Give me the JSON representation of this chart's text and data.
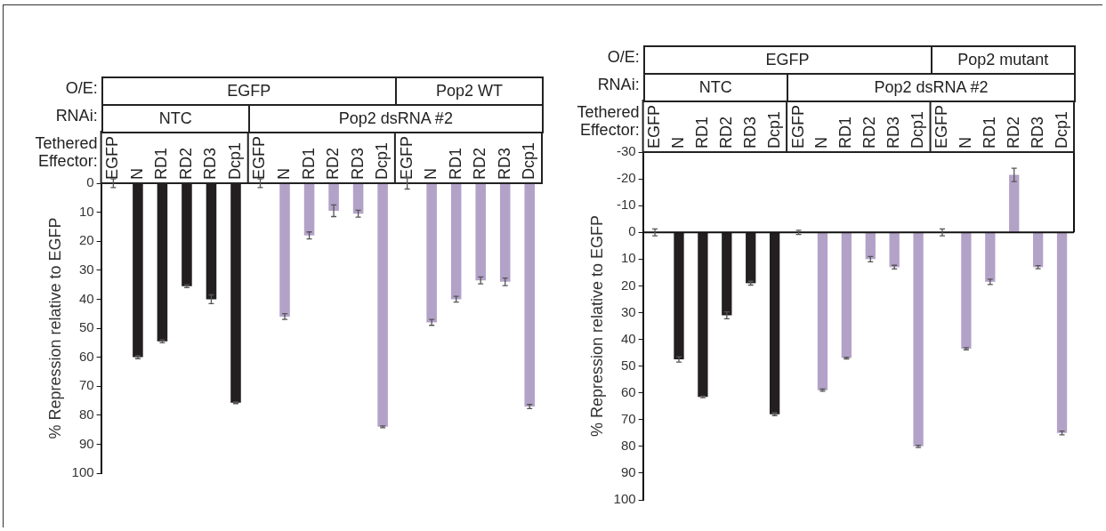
{
  "chart_data": [
    {
      "type": "bar",
      "ylabel": "% Repression relative to EGFP",
      "annotations": [
        "O/E:",
        "EGFP",
        "Pop2 WT",
        "RNAi:",
        "NTC",
        "Pop2 dsRNA #2",
        "Tethered Effector:"
      ],
      "categories": [
        "EGFP",
        "N",
        "RD1",
        "RD2",
        "RD3",
        "Dcp1",
        "EGFP",
        "N",
        "RD1",
        "RD2",
        "RD3",
        "Dcp1",
        "EGFP",
        "N",
        "RD1",
        "RD2",
        "RD3",
        "Dcp1"
      ],
      "values": [
        0,
        60,
        54.5,
        35.5,
        40,
        75.7,
        0,
        46,
        18,
        9.5,
        10.5,
        84,
        0,
        48,
        40,
        33.5,
        34,
        77
      ],
      "errors": [
        1.5,
        0.5,
        0.5,
        0.5,
        1.5,
        0.3,
        1.5,
        1,
        1.2,
        2,
        1.2,
        0.3,
        2,
        1,
        1,
        1.2,
        1.3,
        0.7
      ],
      "colors": [
        "#231f20",
        "#231f20",
        "#231f20",
        "#231f20",
        "#231f20",
        "#231f20",
        "#b3a2c8",
        "#b3a2c8",
        "#b3a2c8",
        "#b3a2c8",
        "#b3a2c8",
        "#b3a2c8",
        "#b3a2c8",
        "#b3a2c8",
        "#b3a2c8",
        "#b3a2c8",
        "#b3a2c8",
        "#b3a2c8"
      ],
      "ylim": [
        100,
        0
      ],
      "yticks": [
        0,
        10,
        20,
        30,
        40,
        50,
        60,
        70,
        80,
        90,
        100
      ]
    },
    {
      "type": "bar",
      "ylabel": "% Repression relative to EGFP",
      "annotations": [
        "O/E:",
        "EGFP",
        "Pop2 mutant",
        "RNAi:",
        "NTC",
        "Pop2 dsRNA #2",
        "Tethered Effector:"
      ],
      "categories": [
        "EGFP",
        "N",
        "RD1",
        "RD2",
        "RD3",
        "Dcp1",
        "EGFP",
        "N",
        "RD1",
        "RD2",
        "RD3",
        "Dcp1",
        "EGFP",
        "N",
        "RD1",
        "RD2",
        "RD3",
        "Dcp1"
      ],
      "values": [
        0,
        47.5,
        61.5,
        31,
        19,
        68,
        0,
        59,
        47,
        10,
        13,
        80,
        0,
        43.5,
        18.5,
        -21.5,
        13,
        75
      ],
      "errors": [
        1.3,
        1,
        0.3,
        1.3,
        0.7,
        0.5,
        0.8,
        0.4,
        0.3,
        1,
        0.7,
        0.4,
        1.3,
        0.4,
        1,
        2.5,
        0.6,
        0.7
      ],
      "colors": [
        "#231f20",
        "#231f20",
        "#231f20",
        "#231f20",
        "#231f20",
        "#231f20",
        "#b3a2c8",
        "#b3a2c8",
        "#b3a2c8",
        "#b3a2c8",
        "#b3a2c8",
        "#b3a2c8",
        "#b3a2c8",
        "#b3a2c8",
        "#b3a2c8",
        "#b3a2c8",
        "#b3a2c8",
        "#b3a2c8"
      ],
      "ylim": [
        100,
        -30
      ],
      "yticks": [
        -30,
        -20,
        -10,
        0,
        10,
        20,
        30,
        40,
        50,
        60,
        70,
        80,
        90,
        100
      ]
    }
  ]
}
